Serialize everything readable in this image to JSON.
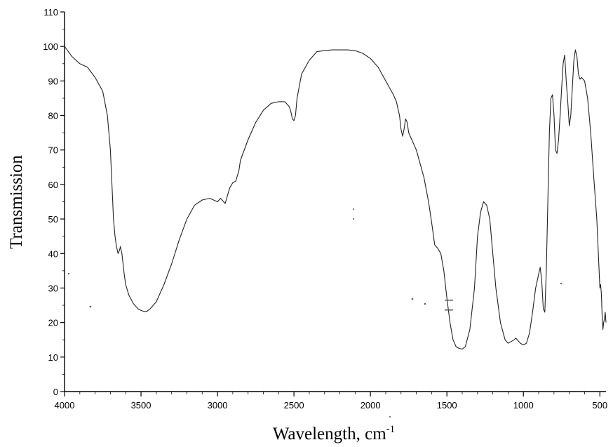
{
  "chart_data": {
    "type": "line",
    "xlabel": "Wavelength, cm",
    "xlabel_superscript": "-1",
    "ylabel": "Transmission",
    "xlim": [
      4000,
      460
    ],
    "ylim": [
      0,
      110
    ],
    "x_reversed": true,
    "xticks": [
      4000,
      3500,
      3000,
      2500,
      2000,
      1500,
      1000,
      500
    ],
    "yticks": [
      0,
      10,
      20,
      30,
      40,
      50,
      60,
      70,
      80,
      90,
      100,
      110
    ],
    "grid": false,
    "line_color": "#222222",
    "series": [
      {
        "x": [
          4000,
          3950,
          3900,
          3850,
          3800,
          3750,
          3720,
          3700,
          3690,
          3680,
          3670,
          3660,
          3650,
          3640,
          3635,
          3630,
          3625,
          3620,
          3610,
          3600,
          3580,
          3550,
          3520,
          3500,
          3480,
          3460,
          3440,
          3420,
          3400,
          3350,
          3300,
          3250,
          3200,
          3150,
          3100,
          3050,
          3000,
          2980,
          2960,
          2950,
          2940,
          2920,
          2900,
          2880,
          2860,
          2850,
          2800,
          2750,
          2700,
          2650,
          2600,
          2560,
          2550,
          2540,
          2530,
          2520,
          2510,
          2500,
          2490,
          2480,
          2450,
          2400,
          2350,
          2300,
          2250,
          2200,
          2150,
          2100,
          2050,
          2000,
          1950,
          1900,
          1850,
          1830,
          1810,
          1800,
          1790,
          1780,
          1770,
          1760,
          1750,
          1700,
          1650,
          1620,
          1600,
          1580,
          1560,
          1540,
          1520,
          1500,
          1480,
          1460,
          1440,
          1420,
          1400,
          1380,
          1350,
          1320,
          1300,
          1280,
          1260,
          1240,
          1220,
          1200,
          1180,
          1150,
          1120,
          1100,
          1080,
          1060,
          1050,
          1040,
          1020,
          1000,
          980,
          960,
          940,
          920,
          900,
          890,
          880,
          870,
          860,
          850,
          840,
          830,
          820,
          810,
          800,
          790,
          780,
          770,
          760,
          750,
          740,
          730,
          720,
          710,
          700,
          690,
          680,
          670,
          660,
          650,
          640,
          630,
          620,
          600,
          580,
          560,
          540,
          520,
          510,
          500,
          495,
          490,
          485,
          480,
          475,
          470,
          465,
          460
        ],
        "y": [
          100,
          97,
          95,
          94,
          91,
          87,
          80,
          70,
          60,
          50,
          45,
          42,
          40,
          41,
          42,
          41,
          40,
          38,
          34,
          31,
          28,
          25.5,
          24,
          23.5,
          23.2,
          23.3,
          24,
          25,
          26,
          31,
          37,
          44,
          50,
          54,
          55.5,
          56,
          55,
          56,
          55,
          54.5,
          56,
          59,
          60.5,
          61,
          64,
          67,
          73,
          78,
          81.5,
          83.5,
          84,
          84,
          83.5,
          83,
          82.5,
          81,
          79,
          78.5,
          80,
          85,
          92,
          96,
          98.5,
          98.8,
          99,
          99,
          99,
          98.8,
          98,
          96.5,
          94,
          90,
          86,
          84,
          80,
          76,
          74,
          76,
          79,
          78,
          75,
          70,
          62,
          55,
          49,
          42.5,
          41.5,
          40,
          35,
          27,
          20,
          15,
          13,
          12.5,
          12.3,
          13,
          18,
          30,
          45,
          52,
          55,
          54,
          50,
          40,
          30,
          20,
          15,
          14,
          14.5,
          15,
          15.5,
          15,
          14,
          13.5,
          14,
          17,
          23,
          30,
          34,
          36,
          32,
          24,
          23,
          35,
          55,
          75,
          85,
          86,
          80,
          70,
          69,
          73,
          80,
          88,
          95,
          97.5,
          90,
          84,
          77,
          80,
          88,
          96,
          99,
          97,
          92,
          90.5,
          91,
          90,
          85,
          75,
          62,
          50,
          40,
          30,
          31,
          28,
          22,
          18,
          20,
          21,
          23,
          20
        ]
      }
    ]
  }
}
